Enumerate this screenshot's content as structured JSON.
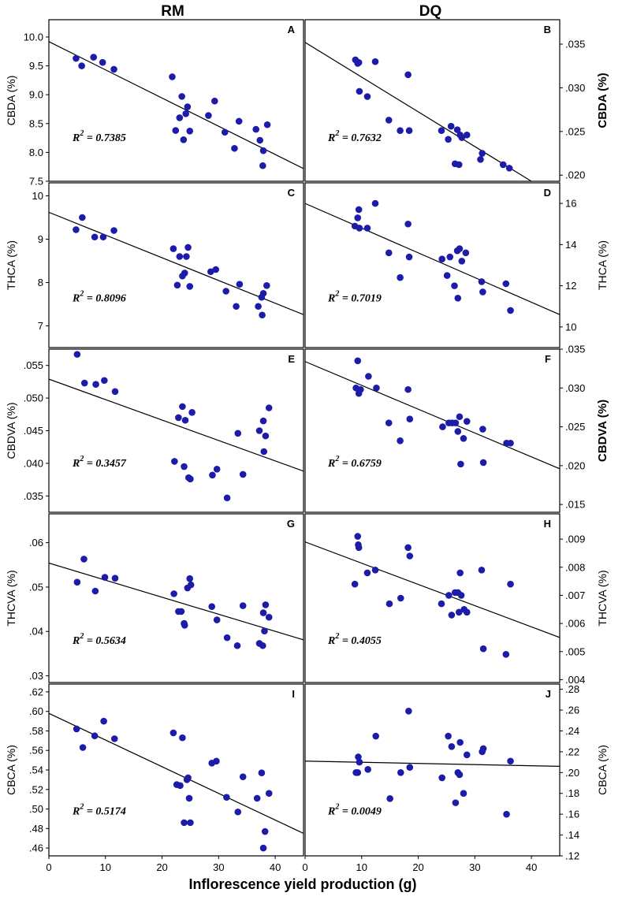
{
  "figure": {
    "column_titles": [
      "RM",
      "DQ"
    ],
    "xlabel": "Inflorescence yield production (g)"
  },
  "chart_data": [
    {
      "panel": "A",
      "type": "scatter",
      "column": "RM",
      "ylabel": "CBDA (%)",
      "xlim": [
        0,
        45
      ],
      "ylim": [
        7.5,
        10.3
      ],
      "yticks": [
        7.5,
        8.0,
        8.5,
        9.0,
        9.5,
        10.0
      ],
      "ytick_labels": [
        "7.5",
        "8.0",
        "8.5",
        "9.0",
        "9.5",
        "10.0"
      ],
      "r2_value": "0.7385",
      "fit_line": [
        [
          0,
          9.92
        ],
        [
          45,
          7.72
        ]
      ],
      "points": [
        [
          4.8,
          9.63
        ],
        [
          5.8,
          9.5
        ],
        [
          7.9,
          9.65
        ],
        [
          9.5,
          9.56
        ],
        [
          11.5,
          9.44
        ],
        [
          21.8,
          9.31
        ],
        [
          22.4,
          8.38
        ],
        [
          23.1,
          8.6
        ],
        [
          23.5,
          8.97
        ],
        [
          23.8,
          8.22
        ],
        [
          24.2,
          8.67
        ],
        [
          24.5,
          8.79
        ],
        [
          24.9,
          8.37
        ],
        [
          28.2,
          8.64
        ],
        [
          29.3,
          8.89
        ],
        [
          31.1,
          8.35
        ],
        [
          32.8,
          8.07
        ],
        [
          33.6,
          8.54
        ],
        [
          36.6,
          8.4
        ],
        [
          37.3,
          8.21
        ],
        [
          37.8,
          7.77
        ],
        [
          37.9,
          8.03
        ],
        [
          38.6,
          8.48
        ]
      ]
    },
    {
      "panel": "B",
      "type": "scatter",
      "column": "DQ",
      "ylabel": "CBDA (%)",
      "xlim": [
        0,
        45
      ],
      "ylim": [
        0.0193,
        0.0378
      ],
      "yticks": [
        0.02,
        0.025,
        0.03,
        0.035
      ],
      "ytick_labels": [
        ".020",
        ".025",
        ".030",
        ".035"
      ],
      "r2_value": "0.7632",
      "fit_line": [
        [
          0,
          0.0352
        ],
        [
          40,
          0.0193
        ]
      ],
      "points": [
        [
          8.9,
          0.0332
        ],
        [
          9.3,
          0.0328
        ],
        [
          9.5,
          0.0329
        ],
        [
          9.6,
          0.0296
        ],
        [
          11.0,
          0.029
        ],
        [
          12.4,
          0.033
        ],
        [
          14.8,
          0.0263
        ],
        [
          16.8,
          0.0251
        ],
        [
          18.2,
          0.0315
        ],
        [
          18.4,
          0.0251
        ],
        [
          24.1,
          0.0251
        ],
        [
          25.3,
          0.0241
        ],
        [
          25.8,
          0.0256
        ],
        [
          26.5,
          0.0213
        ],
        [
          26.9,
          0.0252
        ],
        [
          27.2,
          0.0212
        ],
        [
          27.4,
          0.0246
        ],
        [
          27.7,
          0.0243
        ],
        [
          28.6,
          0.0246
        ],
        [
          31.0,
          0.0218
        ],
        [
          31.3,
          0.0225
        ],
        [
          35.0,
          0.0212
        ],
        [
          36.1,
          0.0208
        ]
      ]
    },
    {
      "panel": "C",
      "type": "scatter",
      "column": "RM",
      "ylabel": "THCA (%)",
      "xlim": [
        0,
        45
      ],
      "ylim": [
        6.5,
        10.3
      ],
      "yticks": [
        7,
        8,
        9,
        10
      ],
      "ytick_labels": [
        "7",
        "8",
        "9",
        "10"
      ],
      "r2_value": "0.8096",
      "fit_line": [
        [
          0,
          9.62
        ],
        [
          45,
          7.26
        ]
      ],
      "points": [
        [
          4.8,
          9.22
        ],
        [
          5.9,
          9.5
        ],
        [
          8.1,
          9.05
        ],
        [
          9.6,
          9.05
        ],
        [
          11.5,
          9.2
        ],
        [
          22.0,
          8.78
        ],
        [
          22.7,
          7.94
        ],
        [
          23.1,
          8.6
        ],
        [
          23.6,
          8.15
        ],
        [
          24.0,
          8.22
        ],
        [
          24.3,
          8.6
        ],
        [
          24.6,
          8.81
        ],
        [
          24.9,
          7.91
        ],
        [
          28.6,
          8.25
        ],
        [
          29.5,
          8.3
        ],
        [
          31.3,
          7.8
        ],
        [
          33.1,
          7.45
        ],
        [
          33.7,
          7.96
        ],
        [
          37.0,
          7.45
        ],
        [
          37.6,
          7.66
        ],
        [
          37.7,
          7.25
        ],
        [
          37.9,
          7.75
        ],
        [
          38.5,
          7.93
        ]
      ]
    },
    {
      "panel": "D",
      "type": "scatter",
      "column": "DQ",
      "ylabel": "THCA (%)",
      "xlim": [
        0,
        45
      ],
      "ylim": [
        9.0,
        17.0
      ],
      "yticks": [
        10,
        12,
        14,
        16
      ],
      "ytick_labels": [
        "10",
        "12",
        "14",
        "16"
      ],
      "r2_value": "0.7019",
      "fit_line": [
        [
          0,
          16.0
        ],
        [
          45,
          10.6
        ]
      ],
      "points": [
        [
          8.8,
          14.9
        ],
        [
          9.3,
          15.3
        ],
        [
          9.5,
          15.7
        ],
        [
          9.6,
          14.8
        ],
        [
          11.0,
          14.8
        ],
        [
          12.4,
          16.0
        ],
        [
          14.8,
          13.6
        ],
        [
          16.8,
          12.4
        ],
        [
          18.2,
          15.0
        ],
        [
          18.4,
          13.4
        ],
        [
          24.2,
          13.3
        ],
        [
          25.1,
          12.5
        ],
        [
          25.6,
          13.4
        ],
        [
          26.4,
          12.0
        ],
        [
          26.9,
          13.7
        ],
        [
          27.0,
          11.4
        ],
        [
          27.3,
          13.8
        ],
        [
          27.7,
          13.2
        ],
        [
          28.4,
          13.6
        ],
        [
          31.2,
          12.2
        ],
        [
          31.4,
          11.7
        ],
        [
          35.5,
          12.1
        ],
        [
          36.3,
          10.8
        ]
      ]
    },
    {
      "panel": "E",
      "type": "scatter",
      "column": "RM",
      "ylabel": "CBDVA (%)",
      "xlim": [
        0,
        45
      ],
      "ylim": [
        0.0325,
        0.0575
      ],
      "yticks": [
        0.035,
        0.04,
        0.045,
        0.05,
        0.055
      ],
      "ytick_labels": [
        ".035",
        ".040",
        ".045",
        ".050",
        ".055"
      ],
      "r2_value": "0.3457",
      "fit_line": [
        [
          0,
          0.0529
        ],
        [
          45,
          0.0388
        ]
      ],
      "points": [
        [
          5.0,
          0.0567
        ],
        [
          6.3,
          0.0523
        ],
        [
          8.3,
          0.0521
        ],
        [
          9.8,
          0.0527
        ],
        [
          11.7,
          0.051
        ],
        [
          22.2,
          0.0403
        ],
        [
          22.9,
          0.047
        ],
        [
          23.6,
          0.0487
        ],
        [
          23.9,
          0.0395
        ],
        [
          24.1,
          0.0466
        ],
        [
          24.7,
          0.0378
        ],
        [
          25.0,
          0.0376
        ],
        [
          25.3,
          0.0478
        ],
        [
          28.9,
          0.0382
        ],
        [
          29.7,
          0.0391
        ],
        [
          31.5,
          0.0347
        ],
        [
          33.4,
          0.0446
        ],
        [
          34.3,
          0.0383
        ],
        [
          37.2,
          0.045
        ],
        [
          37.9,
          0.0465
        ],
        [
          38.0,
          0.0418
        ],
        [
          38.3,
          0.0442
        ],
        [
          38.9,
          0.0485
        ]
      ]
    },
    {
      "panel": "F",
      "type": "scatter",
      "column": "DQ",
      "ylabel": "CBDVA (%)",
      "xlim": [
        0,
        45
      ],
      "ylim": [
        0.014,
        0.035
      ],
      "yticks": [
        0.015,
        0.02,
        0.025,
        0.03,
        0.035
      ],
      "ytick_labels": [
        ".015",
        ".020",
        ".025",
        ".030",
        ".035"
      ],
      "r2_value": "0.6759",
      "fit_line": [
        [
          0,
          0.0334
        ],
        [
          45,
          0.0196
        ]
      ],
      "points": [
        [
          9.0,
          0.03
        ],
        [
          9.3,
          0.0335
        ],
        [
          9.5,
          0.0293
        ],
        [
          9.8,
          0.0298
        ],
        [
          11.2,
          0.0315
        ],
        [
          12.6,
          0.03
        ],
        [
          14.8,
          0.0255
        ],
        [
          16.8,
          0.0232
        ],
        [
          18.2,
          0.0298
        ],
        [
          18.5,
          0.026
        ],
        [
          24.3,
          0.025
        ],
        [
          25.4,
          0.0255
        ],
        [
          26.0,
          0.0255
        ],
        [
          26.6,
          0.0255
        ],
        [
          27.0,
          0.0244
        ],
        [
          27.3,
          0.0263
        ],
        [
          27.5,
          0.0202
        ],
        [
          28.0,
          0.0235
        ],
        [
          28.6,
          0.0257
        ],
        [
          31.4,
          0.0247
        ],
        [
          31.5,
          0.0204
        ],
        [
          35.6,
          0.0229
        ],
        [
          36.3,
          0.0229
        ]
      ]
    },
    {
      "panel": "G",
      "type": "scatter",
      "column": "RM",
      "ylabel": "THCVA (%)",
      "xlim": [
        0,
        45
      ],
      "ylim": [
        0.0285,
        0.0665
      ],
      "yticks": [
        0.03,
        0.04,
        0.05,
        0.06
      ],
      "ytick_labels": [
        ".03",
        ".04",
        ".05",
        ".06"
      ],
      "r2_value": "0.5634",
      "fit_line": [
        [
          0,
          0.0554
        ],
        [
          45,
          0.0381
        ]
      ],
      "points": [
        [
          5.0,
          0.0511
        ],
        [
          6.2,
          0.0563
        ],
        [
          8.2,
          0.0491
        ],
        [
          9.9,
          0.0522
        ],
        [
          11.7,
          0.052
        ],
        [
          22.1,
          0.0485
        ],
        [
          22.9,
          0.0445
        ],
        [
          23.4,
          0.0445
        ],
        [
          23.9,
          0.0418
        ],
        [
          24.0,
          0.0414
        ],
        [
          24.5,
          0.0498
        ],
        [
          24.9,
          0.0519
        ],
        [
          25.1,
          0.0505
        ],
        [
          28.8,
          0.0456
        ],
        [
          29.7,
          0.0426
        ],
        [
          31.5,
          0.0386
        ],
        [
          33.3,
          0.0368
        ],
        [
          34.3,
          0.0458
        ],
        [
          37.2,
          0.0373
        ],
        [
          37.8,
          0.0368
        ],
        [
          37.9,
          0.0442
        ],
        [
          38.1,
          0.0401
        ],
        [
          38.3,
          0.046
        ],
        [
          38.9,
          0.0432
        ]
      ]
    },
    {
      "panel": "H",
      "type": "scatter",
      "column": "DQ",
      "ylabel": "THCVA (%)",
      "xlim": [
        0,
        45
      ],
      "ylim": [
        0.0039,
        0.0099
      ],
      "yticks": [
        0.004,
        0.005,
        0.006,
        0.007,
        0.008,
        0.009
      ],
      "ytick_labels": [
        ".004",
        ".005",
        ".006",
        ".007",
        ".008",
        ".009"
      ],
      "r2_value": "0.4055",
      "fit_line": [
        [
          0,
          0.0089
        ],
        [
          45,
          0.0055
        ]
      ],
      "points": [
        [
          8.8,
          0.0074
        ],
        [
          9.3,
          0.0091
        ],
        [
          9.4,
          0.0088
        ],
        [
          9.5,
          0.0087
        ],
        [
          11.0,
          0.0078
        ],
        [
          12.4,
          0.0079
        ],
        [
          14.9,
          0.0067
        ],
        [
          16.9,
          0.0069
        ],
        [
          18.2,
          0.0087
        ],
        [
          18.5,
          0.0084
        ],
        [
          24.1,
          0.0067
        ],
        [
          25.4,
          0.007
        ],
        [
          25.9,
          0.0063
        ],
        [
          26.5,
          0.0071
        ],
        [
          27.0,
          0.0071
        ],
        [
          27.2,
          0.0064
        ],
        [
          27.4,
          0.0078
        ],
        [
          27.6,
          0.007
        ],
        [
          28.1,
          0.0065
        ],
        [
          28.6,
          0.0064
        ],
        [
          31.2,
          0.0079
        ],
        [
          31.5,
          0.0051
        ],
        [
          35.5,
          0.0049
        ],
        [
          36.3,
          0.0074
        ]
      ]
    },
    {
      "panel": "I",
      "type": "scatter",
      "column": "RM",
      "ylabel": "CBCA (%)",
      "xlim": [
        0,
        45
      ],
      "ylim": [
        0.452,
        0.628
      ],
      "yticks": [
        0.46,
        0.48,
        0.5,
        0.52,
        0.54,
        0.56,
        0.58,
        0.6,
        0.62
      ],
      "ytick_labels": [
        ".46",
        ".48",
        ".50",
        ".52",
        ".54",
        ".56",
        ".58",
        ".60",
        ".62"
      ],
      "r2_value": "0.5174",
      "fit_line": [
        [
          0,
          0.598
        ],
        [
          45,
          0.475
        ]
      ],
      "points": [
        [
          4.9,
          0.582
        ],
        [
          6.0,
          0.563
        ],
        [
          8.1,
          0.575
        ],
        [
          9.7,
          0.59
        ],
        [
          11.6,
          0.572
        ],
        [
          22.0,
          0.578
        ],
        [
          22.6,
          0.525
        ],
        [
          23.2,
          0.524
        ],
        [
          23.6,
          0.573
        ],
        [
          23.9,
          0.486
        ],
        [
          24.4,
          0.53
        ],
        [
          24.6,
          0.532
        ],
        [
          24.8,
          0.511
        ],
        [
          25.0,
          0.486
        ],
        [
          28.8,
          0.547
        ],
        [
          29.6,
          0.549
        ],
        [
          31.4,
          0.512
        ],
        [
          33.4,
          0.497
        ],
        [
          34.3,
          0.533
        ],
        [
          36.8,
          0.511
        ],
        [
          37.6,
          0.537
        ],
        [
          37.9,
          0.46
        ],
        [
          38.2,
          0.477
        ],
        [
          38.9,
          0.516
        ]
      ]
    },
    {
      "panel": "J",
      "type": "scatter",
      "column": "DQ",
      "ylabel": "CBCA (%)",
      "xlim": [
        0,
        45
      ],
      "ylim": [
        0.12,
        0.285
      ],
      "yticks": [
        0.12,
        0.14,
        0.16,
        0.18,
        0.2,
        0.22,
        0.24,
        0.26,
        0.28
      ],
      "ytick_labels": [
        ".12",
        ".14",
        ".16",
        ".18",
        ".20",
        ".22",
        ".24",
        ".26",
        ".28"
      ],
      "r2_value": "0.0049",
      "fit_line": [
        [
          0,
          0.211
        ],
        [
          45,
          0.206
        ]
      ],
      "points": [
        [
          9.0,
          0.2
        ],
        [
          9.3,
          0.2
        ],
        [
          9.4,
          0.215
        ],
        [
          9.6,
          0.21
        ],
        [
          11.1,
          0.203
        ],
        [
          12.5,
          0.235
        ],
        [
          15.0,
          0.175
        ],
        [
          16.9,
          0.2
        ],
        [
          18.3,
          0.259
        ],
        [
          18.5,
          0.205
        ],
        [
          24.2,
          0.195
        ],
        [
          25.3,
          0.235
        ],
        [
          25.9,
          0.225
        ],
        [
          26.6,
          0.171
        ],
        [
          27.0,
          0.2
        ],
        [
          27.3,
          0.198
        ],
        [
          27.4,
          0.229
        ],
        [
          28.0,
          0.18
        ],
        [
          28.6,
          0.217
        ],
        [
          31.3,
          0.22
        ],
        [
          31.5,
          0.223
        ],
        [
          35.6,
          0.16
        ],
        [
          36.3,
          0.211
        ]
      ]
    }
  ]
}
